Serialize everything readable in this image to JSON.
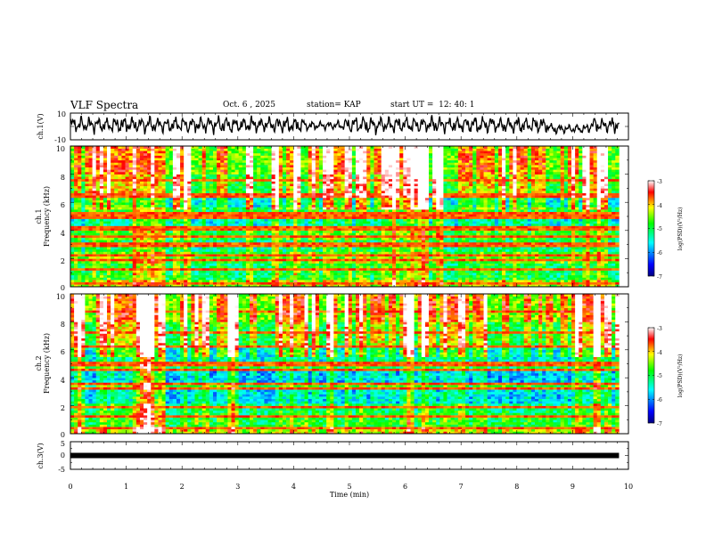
{
  "header": {
    "title": "VLF Spectra",
    "date": "Oct. 6 , 2025",
    "station": "station= KAP",
    "start": "start UT =  12: 40: 1"
  },
  "chart_data": [
    {
      "type": "line",
      "panel": "ch1-waveform",
      "ylabel": "ch.1(V)",
      "ylim": [
        -10,
        10
      ],
      "ytick_labels": [
        "10",
        "-10"
      ],
      "x_range_min": [
        0,
        9.83
      ],
      "description_series": "dense oscillating waveform, amplitude mostly within ±6 V"
    },
    {
      "type": "heatmap",
      "panel": "ch1-spectrogram",
      "ylabel_line1": "ch.1",
      "ylabel_line2": "Frequency (kHz)",
      "ylim": [
        0,
        10
      ],
      "ytick_labels": [
        "0",
        "2",
        "4",
        "6",
        "8",
        "10"
      ],
      "x_range_min": [
        0,
        9.83
      ],
      "colorbar": {
        "label": "log(PSD)(V²/Hz)",
        "range": [
          -7,
          -3
        ],
        "tick_labels": [
          "-3",
          "-4",
          "-5",
          "-6",
          "-7"
        ]
      },
      "bands": [
        {
          "f0": 0.0,
          "f1": 0.5,
          "level": -4.6
        },
        {
          "f0": 0.5,
          "f1": 1.6,
          "level": -5.2
        },
        {
          "f0": 1.6,
          "f1": 2.5,
          "level": -4.9
        },
        {
          "f0": 2.5,
          "f1": 3.3,
          "level": -5.4
        },
        {
          "f0": 3.3,
          "f1": 4.0,
          "level": -5.0
        },
        {
          "f0": 4.0,
          "f1": 5.0,
          "level": -5.6
        },
        {
          "f0": 5.0,
          "f1": 5.7,
          "level": -5.1
        },
        {
          "f0": 5.7,
          "f1": 6.4,
          "level": -5.6
        },
        {
          "f0": 6.4,
          "f1": 8.0,
          "level": -4.9
        },
        {
          "f0": 8.0,
          "f1": 10.0,
          "level": -4.6
        }
      ],
      "lines_khz": [
        0.3,
        1.3,
        1.9,
        2.3,
        3.0,
        3.6,
        4.1,
        4.3,
        5.0,
        5.3,
        6.5,
        7.6
      ],
      "burst": {
        "t0": 1.1,
        "t1": 1.65,
        "boost": 0.9
      },
      "sferic_count": 90
    },
    {
      "type": "heatmap",
      "panel": "ch2-spectrogram",
      "ylabel_line1": "ch.2",
      "ylabel_line2": "Frequency (kHz)",
      "ylim": [
        0,
        10
      ],
      "ytick_labels": [
        "0",
        "2",
        "4",
        "6",
        "8",
        "10"
      ],
      "x_range_min": [
        0,
        9.83
      ],
      "colorbar": {
        "label": "log(PSD)(V²/Hz)",
        "range": [
          -7,
          -3
        ],
        "tick_labels": [
          "-3",
          "-4",
          "-5",
          "-6",
          "-7"
        ]
      },
      "bands": [
        {
          "f0": 0.0,
          "f1": 0.5,
          "level": -4.5
        },
        {
          "f0": 0.5,
          "f1": 1.5,
          "level": -5.1
        },
        {
          "f0": 1.5,
          "f1": 2.2,
          "level": -5.3
        },
        {
          "f0": 2.2,
          "f1": 3.2,
          "level": -5.8
        },
        {
          "f0": 3.2,
          "f1": 3.7,
          "level": -5.0
        },
        {
          "f0": 3.7,
          "f1": 4.6,
          "level": -5.9
        },
        {
          "f0": 4.6,
          "f1": 5.2,
          "level": -5.2
        },
        {
          "f0": 5.2,
          "f1": 6.2,
          "level": -5.6
        },
        {
          "f0": 6.2,
          "f1": 8.0,
          "level": -5.0
        },
        {
          "f0": 8.0,
          "f1": 10.0,
          "level": -4.5
        }
      ],
      "lines_khz": [
        0.4,
        1.2,
        1.9,
        3.3,
        3.6,
        4.6,
        5.0,
        6.2,
        7.3,
        8.8
      ],
      "burst": {
        "t0": 1.1,
        "t1": 1.65,
        "boost": 1.0
      },
      "sferic_count": 90
    },
    {
      "type": "line",
      "panel": "ch3-waveform",
      "ylabel": "ch.3(V)",
      "ylim": [
        -5,
        5
      ],
      "ytick_labels": [
        "5",
        "0",
        "-5"
      ],
      "x_range_min": [
        0,
        9.83
      ],
      "constant_level_v": 0,
      "xlabel": "Time (min)",
      "xlim": [
        0,
        10
      ],
      "xtick_labels": [
        "0",
        "1",
        "2",
        "3",
        "4",
        "5",
        "6",
        "7",
        "8",
        "9",
        "10"
      ]
    }
  ]
}
